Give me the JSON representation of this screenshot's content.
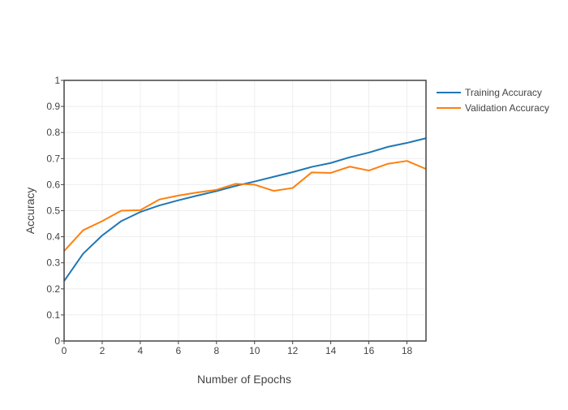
{
  "chart_data": {
    "type": "line",
    "title": "",
    "xlabel": "Number of Epochs",
    "ylabel": "Accuracy",
    "xlim": [
      0,
      19
    ],
    "ylim": [
      0,
      1
    ],
    "x_ticks": [
      0,
      2,
      4,
      6,
      8,
      10,
      12,
      14,
      16,
      18
    ],
    "y_ticks": [
      0,
      0.1,
      0.2,
      0.3,
      0.4,
      0.5,
      0.6,
      0.7,
      0.8,
      0.9,
      1
    ],
    "grid": true,
    "legend_position": "top-right-outside",
    "x": [
      0,
      1,
      2,
      3,
      4,
      5,
      6,
      7,
      8,
      9,
      10,
      11,
      12,
      13,
      14,
      15,
      16,
      17,
      18,
      19
    ],
    "series": [
      {
        "name": "Training Accuracy",
        "color": "#1f77b4",
        "values": [
          0.23,
          0.335,
          0.405,
          0.46,
          0.495,
          0.52,
          0.54,
          0.558,
          0.575,
          0.595,
          0.612,
          0.63,
          0.648,
          0.668,
          0.683,
          0.705,
          0.723,
          0.745,
          0.76,
          0.778
        ]
      },
      {
        "name": "Validation Accuracy",
        "color": "#ff7f0e",
        "values": [
          0.345,
          0.425,
          0.46,
          0.5,
          0.502,
          0.543,
          0.558,
          0.57,
          0.58,
          0.603,
          0.6,
          0.576,
          0.587,
          0.647,
          0.645,
          0.669,
          0.654,
          0.68,
          0.691,
          0.66
        ]
      }
    ]
  }
}
